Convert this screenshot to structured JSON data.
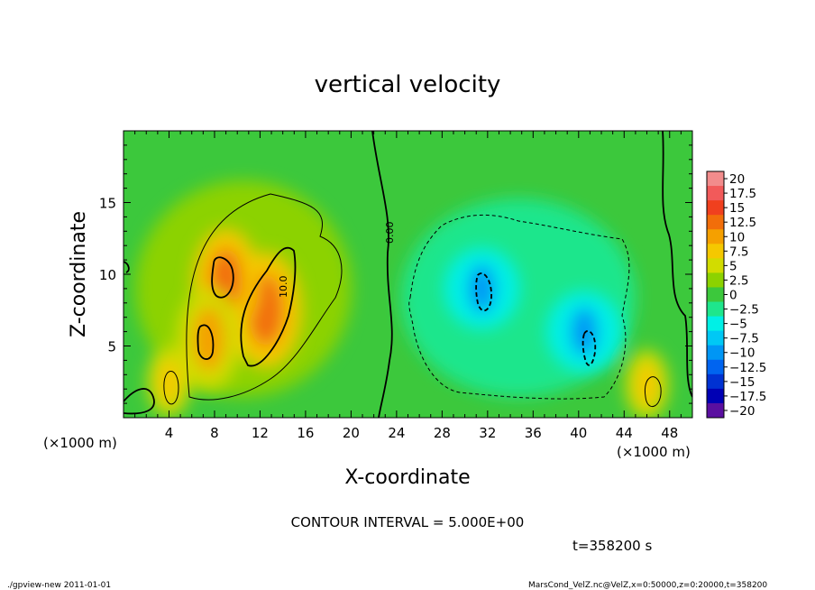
{
  "chart_data": {
    "type": "heatmap",
    "title": "vertical velocity",
    "xlabel": "X-coordinate",
    "ylabel": "Z-coordinate",
    "x_unit": "(×1000 m)",
    "y_unit": "(×1000 m)",
    "xlim": [
      0,
      50
    ],
    "ylim": [
      0,
      20
    ],
    "x_ticks": [
      4,
      8,
      12,
      16,
      20,
      24,
      28,
      32,
      36,
      40,
      44,
      48
    ],
    "y_ticks": [
      5,
      10,
      15
    ],
    "colorbar": {
      "levels": [
        20,
        17.5,
        15,
        12.5,
        10,
        7.5,
        5,
        2.5,
        0,
        -2.5,
        -5,
        -7.5,
        -10,
        -12.5,
        -15,
        -17.5,
        -20
      ],
      "colors": [
        "#f28c8c",
        "#f25a5a",
        "#f0401e",
        "#f26e0a",
        "#f5a000",
        "#f5c800",
        "#d2dc00",
        "#8cd200",
        "#3cc83c",
        "#1ee68c",
        "#00f0e6",
        "#00c8f5",
        "#0096f5",
        "#0064f0",
        "#0032d2",
        "#0000b4",
        "#5a0fa0"
      ]
    },
    "contour_labels": [
      "10.0",
      "0.00"
    ],
    "fields": {
      "updrafts": [
        {
          "x": 12.5,
          "z": 7.5,
          "peak": 12.5
        },
        {
          "x": 9.0,
          "z": 9.5,
          "peak": 11.5
        },
        {
          "x": 7.5,
          "z": 5.5,
          "peak": 11.0
        },
        {
          "x": 4.0,
          "z": 2.5,
          "peak": 7.5
        },
        {
          "x": 46.0,
          "z": 2.3,
          "peak": 7.5
        }
      ],
      "downdrafts": [
        {
          "x": 31.5,
          "z": 9.0,
          "peak": -10.0
        },
        {
          "x": 40.5,
          "z": 6.0,
          "peak": -10.0
        }
      ]
    }
  },
  "annotations": {
    "contour_interval": "CONTOUR INTERVAL = 5.000E+00",
    "time": "t=358200 s",
    "footer_left": "./gpview-new   2011-01-01",
    "footer_right": "MarsCond_VelZ.nc@VelZ,x=0:50000,z=0:20000,t=358200"
  }
}
